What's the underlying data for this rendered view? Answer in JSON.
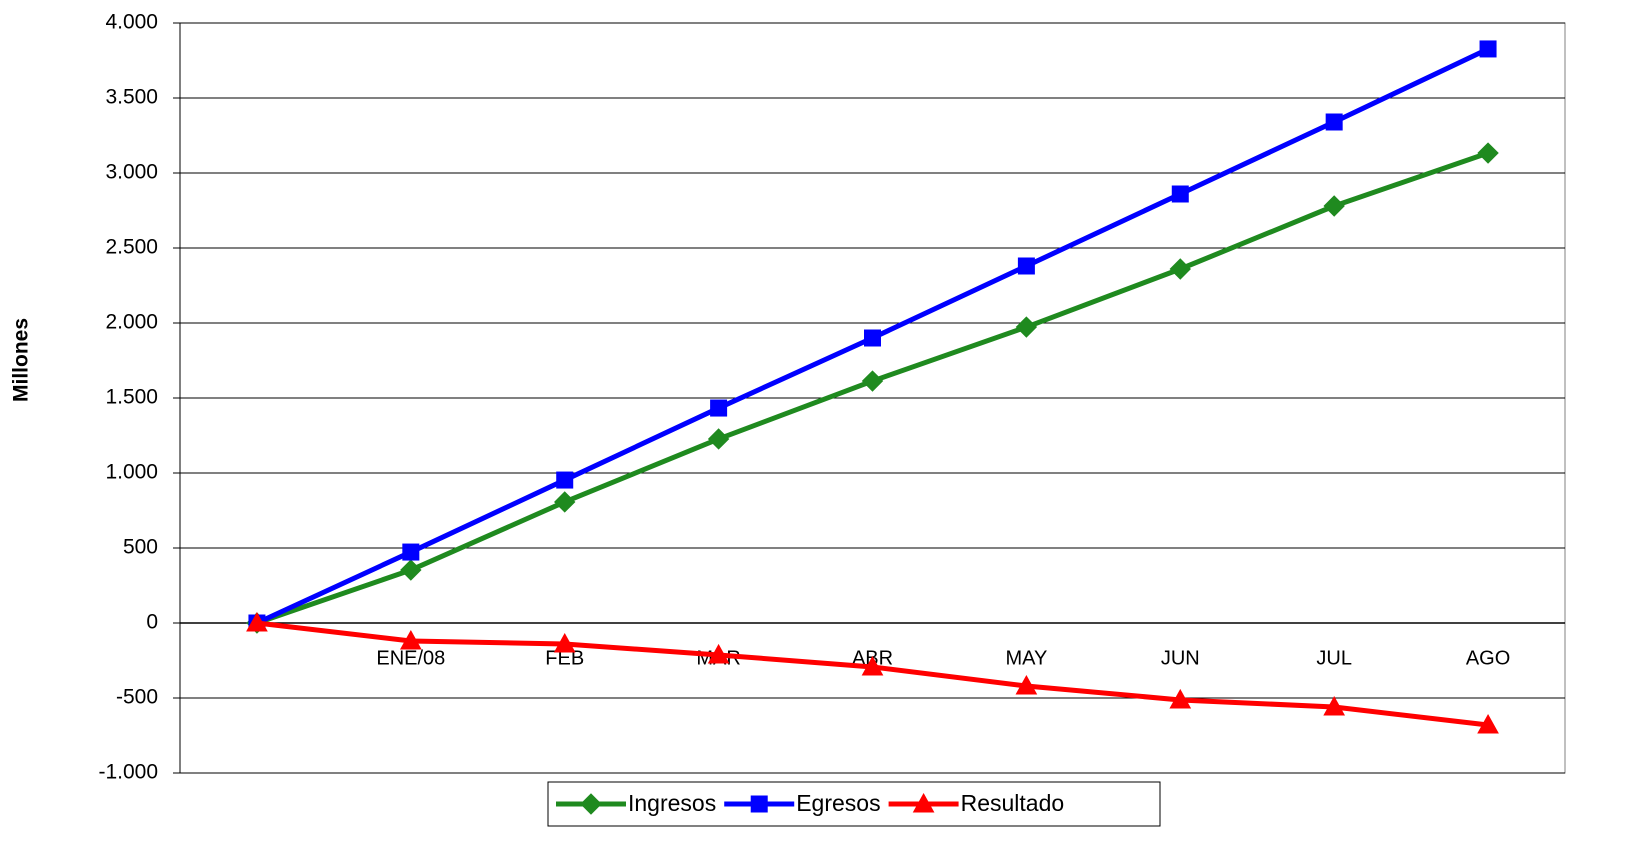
{
  "chart_data": {
    "type": "line",
    "y_label": "Millones",
    "categories": [
      null,
      "ENE/08",
      "FEB",
      "MAR",
      "ABR",
      "MAY",
      "JUN",
      "JUL",
      "AGO"
    ],
    "series": [
      {
        "name": "Ingresos",
        "color": "#1f8a1f",
        "marker": "diamond",
        "values": [
          0,
          353,
          807,
          1227,
          1613,
          1973,
          2360,
          2780,
          3133
        ]
      },
      {
        "name": "Egresos",
        "color": "#0000ff",
        "marker": "square",
        "values": [
          0,
          473,
          953,
          1433,
          1900,
          2380,
          2860,
          3340,
          3827
        ]
      },
      {
        "name": "Resultado",
        "color": "#ff0000",
        "marker": "triangle",
        "values": [
          0,
          -120,
          -140,
          -213,
          -293,
          -420,
          -513,
          -560,
          -680
        ]
      }
    ],
    "ylim": [
      -1000,
      4000
    ],
    "yticks": [
      {
        "value": -1000,
        "label": "-1.000"
      },
      -500,
      0,
      500,
      {
        "value": 1000,
        "label": "1.000"
      },
      {
        "value": 1500,
        "label": "1.500"
      },
      {
        "value": 2000,
        "label": "2.000"
      },
      {
        "value": 2500,
        "label": "2.500"
      },
      {
        "value": 3000,
        "label": "3.000"
      },
      {
        "value": 3500,
        "label": "3.500"
      },
      {
        "value": 4000,
        "label": "4.000"
      }
    ],
    "grid": true,
    "legend": "bottom"
  }
}
